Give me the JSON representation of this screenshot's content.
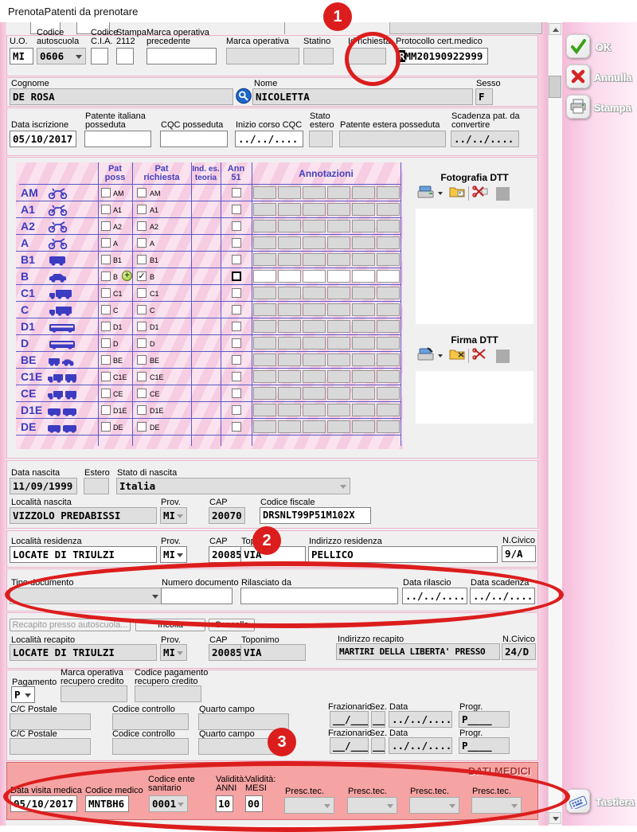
{
  "window": {
    "title": "PrenotaPatenti da prenotare"
  },
  "right_panel": {
    "ok": "OK",
    "annulla": "Annulla",
    "stampa": "Stampa",
    "tastiera": "Tastiera"
  },
  "top_row": {
    "uo_label": "U.O.",
    "uo_value": "MI",
    "autoscuola_label1": "Codice",
    "autoscuola_label2": "autoscuola",
    "autoscuola_value": "0606",
    "cia_label1": "Codice",
    "cia_label2": "C.I.A.",
    "cia_value": "",
    "stampa2112_label1": "Stampa",
    "stampa2112_label2": "2112",
    "stampa2112_value": "",
    "marca_prec_label1": "Marca operativa",
    "marca_prec_label2": "precedente",
    "marca_prec_value": "",
    "marca_op_label": "Marca operativa",
    "marca_op_value": "",
    "statino_label": "Statino",
    "statino_value": "",
    "id_richiesta_label": "Id richiesta",
    "id_richiesta_value": "",
    "protocollo_label": "Protocollo cert.medico",
    "protocollo_sel": "R",
    "protocollo_rest": "MM20190922999"
  },
  "anagrafica": {
    "cognome_label": "Cognome",
    "cognome": "DE ROSA",
    "nome_label": "Nome",
    "nome": "NICOLETTA",
    "sesso_label": "Sesso",
    "sesso": "F"
  },
  "iscrizione": {
    "data_label": "Data iscrizione",
    "data": "05/10/2017",
    "pat_ita_label1": "Patente italiana",
    "pat_ita_label2": "posseduta",
    "pat_ita": "",
    "cqc_label": "CQC posseduta",
    "cqc": "",
    "inizio_cqc_label": "Inizio corso CQC",
    "inizio_cqc": "../../....",
    "stato_estero_label1": "Stato",
    "stato_estero_label2": "estero",
    "stato_estero": "",
    "pat_estera_label": "Patente estera posseduta",
    "pat_estera": "",
    "scad_conv_label1": "Scadenza pat. da",
    "scad_conv_label2": "convertire",
    "scad_conv": "../../...."
  },
  "licenze": {
    "h_poss1": "Pat",
    "h_poss2": "poss",
    "h_rich1": "Pat",
    "h_rich2": "richiesta",
    "h_teo1": "Ind. es.",
    "h_teo2": "teoria",
    "h_ann1": "Ann",
    "h_ann2": "51",
    "h_annot": "Annotazioni",
    "rows": [
      {
        "code": "AM",
        "icon": "moto"
      },
      {
        "code": "A1",
        "icon": "moto"
      },
      {
        "code": "A2",
        "icon": "moto"
      },
      {
        "code": "A",
        "icon": "moto"
      },
      {
        "code": "B1",
        "icon": "van"
      },
      {
        "code": "B",
        "icon": "car",
        "checked": true
      },
      {
        "code": "C1",
        "icon": "truck"
      },
      {
        "code": "C",
        "icon": "truck"
      },
      {
        "code": "D1",
        "icon": "bus"
      },
      {
        "code": "D",
        "icon": "bus"
      },
      {
        "code": "BE",
        "icon": "car2"
      },
      {
        "code": "C1E",
        "icon": "truck2"
      },
      {
        "code": "CE",
        "icon": "truck2"
      },
      {
        "code": "D1E",
        "icon": "bus2"
      },
      {
        "code": "DE",
        "icon": "bus2"
      }
    ]
  },
  "foto": {
    "title": "Fotografia DTT"
  },
  "firma": {
    "title": "Firma DTT"
  },
  "nascita": {
    "data_label": "Data nascita",
    "data": "11/09/1999",
    "estero_label": "Estero",
    "estero": "",
    "stato_label": "Stato di nascita",
    "stato": "Italia",
    "localita_label": "Località nascita",
    "localita": "VIZZOLO PREDABISSI",
    "prov_label": "Prov.",
    "prov": "MI",
    "cap_label": "CAP",
    "cap": "20070",
    "cf_label": "Codice fiscale",
    "cf": "DRSNLT99P51M102X"
  },
  "residenza": {
    "localita_label": "Località residenza",
    "localita": "LOCATE DI TRIULZI",
    "prov_label": "Prov.",
    "prov": "MI",
    "cap_label": "CAP",
    "cap": "20085",
    "toponimo_label": "Toponimo",
    "toponimo": "VIA",
    "indirizzo_label": "Indirizzo residenza",
    "indirizzo": "PELLICO",
    "civico_label": "N.Civico",
    "civico": "9/A"
  },
  "documento": {
    "tipo_label": "Tipo documento",
    "tipo": "",
    "numero_label": "Numero documento",
    "numero": "",
    "rilasciato_label": "Rilasciato da",
    "rilasciato": "",
    "rilascio_label": "Data rilascio",
    "rilascio": "../../....",
    "scadenza_label": "Data scadenza",
    "scadenza": "../../...."
  },
  "recapito": {
    "btn_autoscuola": "Recapito presso autoscuola...",
    "btn_incolla": "Incolla",
    "btn_cancella": "Cancella",
    "localita_label": "Località recapito",
    "localita": "LOCATE DI TRIULZI",
    "prov_label": "Prov.",
    "prov": "MI",
    "cap_label": "CAP",
    "cap": "20085",
    "toponimo_label": "Toponimo",
    "toponimo": "VIA",
    "indirizzo_label": "Indirizzo recapito",
    "indirizzo": "MARTIRI DELLA LIBERTA' PRESSO ",
    "civico_label": "N.Civico",
    "civico": "24/D"
  },
  "pagamento": {
    "pagamento_label": "Pagamento",
    "pagamento": "P",
    "marca_rec_label1": "Marca operativa",
    "marca_rec_label2": "recupero credito",
    "marca_rec": "",
    "cod_pag_label1": "Codice pagamento",
    "cod_pag_label2": "recupero credito",
    "cod_pag": "",
    "cc_label": "C/C Postale",
    "cc": "",
    "controllo_label": "Codice controllo",
    "controllo": "",
    "quarto_label": "Quarto campo",
    "quarto": "",
    "fraz_label": "Frazionario",
    "fraz": "__/____",
    "sez_label": "Sez.",
    "sez": "__",
    "data_label": "Data",
    "data": "../../....",
    "progr_label": "Progr.",
    "progr": "P____"
  },
  "dati_medici": {
    "title": "DATI MEDICI",
    "visita_label": "Data visita medica",
    "visita": "05/10/2017",
    "medico_label": "Codice medico",
    "medico": "MNTBH6",
    "ente_label1": "Codice ente",
    "ente_label2": "sanitario",
    "ente": "0001",
    "anni_label1": "Validità:",
    "anni_label2": "ANNI",
    "anni": "10",
    "mesi_label1": "Validità:",
    "mesi_label2": "MESI",
    "mesi": "00",
    "presc_label": "Presc.tec."
  },
  "annotations": {
    "badge1": "1",
    "badge2": "2",
    "badge3": "3"
  },
  "colors": {
    "annotation_red": "#dc1d1d",
    "pink_border": "#ecb3cc",
    "salmon": "#f6a3a3",
    "grid_pink": "#f8d7e8",
    "grid_blue": "#3c3cc2"
  }
}
